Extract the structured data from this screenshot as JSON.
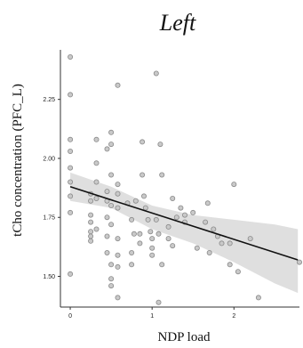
{
  "chart_data": {
    "type": "scatter",
    "title": "Left",
    "xlabel": "NDP load",
    "ylabel": "tCho concentration (PFC_L)",
    "xlim": [
      -0.12,
      2.8
    ],
    "ylim": [
      1.37,
      2.46
    ],
    "x_ticks": [
      0,
      1,
      2
    ],
    "y_ticks": [
      1.5,
      1.75,
      2.0,
      2.25
    ],
    "x_tick_labels": [
      "0",
      "1",
      "2"
    ],
    "y_tick_labels": [
      "1.50",
      "1.75",
      "2.00",
      "2.25"
    ],
    "grid": false,
    "fit_line": {
      "x": [
        0,
        2.78
      ],
      "y": [
        1.88,
        1.57
      ]
    },
    "confidence_band": {
      "x": [
        0,
        0.5,
        1.0,
        1.5,
        2.0,
        2.5,
        2.78
      ],
      "upper": [
        1.94,
        1.88,
        1.8,
        1.76,
        1.74,
        1.72,
        1.7
      ],
      "lower": [
        1.82,
        1.79,
        1.7,
        1.64,
        1.56,
        1.47,
        1.43
      ]
    },
    "points": [
      {
        "x": 0.0,
        "y": 2.43
      },
      {
        "x": 0.0,
        "y": 2.27
      },
      {
        "x": 0.0,
        "y": 2.08
      },
      {
        "x": 0.0,
        "y": 2.03
      },
      {
        "x": 0.0,
        "y": 1.96
      },
      {
        "x": 0.0,
        "y": 1.9
      },
      {
        "x": 0.0,
        "y": 1.84
      },
      {
        "x": 0.0,
        "y": 1.77
      },
      {
        "x": 0.0,
        "y": 1.51
      },
      {
        "x": 0.25,
        "y": 1.85
      },
      {
        "x": 0.25,
        "y": 1.82
      },
      {
        "x": 0.25,
        "y": 1.76
      },
      {
        "x": 0.25,
        "y": 1.73
      },
      {
        "x": 0.25,
        "y": 1.69
      },
      {
        "x": 0.25,
        "y": 1.67
      },
      {
        "x": 0.25,
        "y": 1.65
      },
      {
        "x": 0.32,
        "y": 2.08
      },
      {
        "x": 0.32,
        "y": 1.98
      },
      {
        "x": 0.32,
        "y": 1.9
      },
      {
        "x": 0.32,
        "y": 1.83
      },
      {
        "x": 0.32,
        "y": 1.7
      },
      {
        "x": 0.45,
        "y": 2.04
      },
      {
        "x": 0.45,
        "y": 1.86
      },
      {
        "x": 0.45,
        "y": 1.82
      },
      {
        "x": 0.45,
        "y": 1.75
      },
      {
        "x": 0.45,
        "y": 1.67
      },
      {
        "x": 0.45,
        "y": 1.6
      },
      {
        "x": 0.5,
        "y": 2.11
      },
      {
        "x": 0.5,
        "y": 2.06
      },
      {
        "x": 0.5,
        "y": 1.93
      },
      {
        "x": 0.5,
        "y": 1.8
      },
      {
        "x": 0.5,
        "y": 1.72
      },
      {
        "x": 0.5,
        "y": 1.55
      },
      {
        "x": 0.5,
        "y": 1.49
      },
      {
        "x": 0.5,
        "y": 1.46
      },
      {
        "x": 0.58,
        "y": 2.31
      },
      {
        "x": 0.58,
        "y": 1.89
      },
      {
        "x": 0.58,
        "y": 1.85
      },
      {
        "x": 0.58,
        "y": 1.79
      },
      {
        "x": 0.58,
        "y": 1.66
      },
      {
        "x": 0.58,
        "y": 1.59
      },
      {
        "x": 0.58,
        "y": 1.54
      },
      {
        "x": 0.58,
        "y": 1.41
      },
      {
        "x": 0.7,
        "y": 1.81
      },
      {
        "x": 0.75,
        "y": 1.74
      },
      {
        "x": 0.75,
        "y": 1.6
      },
      {
        "x": 0.75,
        "y": 1.55
      },
      {
        "x": 0.78,
        "y": 1.68
      },
      {
        "x": 0.8,
        "y": 1.82
      },
      {
        "x": 0.85,
        "y": 1.68
      },
      {
        "x": 0.85,
        "y": 1.64
      },
      {
        "x": 0.88,
        "y": 2.07
      },
      {
        "x": 0.88,
        "y": 1.93
      },
      {
        "x": 0.9,
        "y": 1.84
      },
      {
        "x": 0.92,
        "y": 1.79
      },
      {
        "x": 0.95,
        "y": 1.74
      },
      {
        "x": 0.98,
        "y": 1.69
      },
      {
        "x": 1.0,
        "y": 1.66
      },
      {
        "x": 1.0,
        "y": 1.62
      },
      {
        "x": 1.0,
        "y": 1.59
      },
      {
        "x": 1.05,
        "y": 2.36
      },
      {
        "x": 1.05,
        "y": 1.74
      },
      {
        "x": 1.08,
        "y": 1.68
      },
      {
        "x": 1.08,
        "y": 1.39
      },
      {
        "x": 1.1,
        "y": 2.06
      },
      {
        "x": 1.12,
        "y": 1.93
      },
      {
        "x": 1.12,
        "y": 1.55
      },
      {
        "x": 1.2,
        "y": 1.71
      },
      {
        "x": 1.2,
        "y": 1.66
      },
      {
        "x": 1.25,
        "y": 1.83
      },
      {
        "x": 1.25,
        "y": 1.63
      },
      {
        "x": 1.3,
        "y": 1.75
      },
      {
        "x": 1.35,
        "y": 1.79
      },
      {
        "x": 1.4,
        "y": 1.76
      },
      {
        "x": 1.4,
        "y": 1.73
      },
      {
        "x": 1.5,
        "y": 1.77
      },
      {
        "x": 1.55,
        "y": 1.62
      },
      {
        "x": 1.65,
        "y": 1.73
      },
      {
        "x": 1.68,
        "y": 1.81
      },
      {
        "x": 1.7,
        "y": 1.6
      },
      {
        "x": 1.75,
        "y": 1.7
      },
      {
        "x": 1.8,
        "y": 1.67
      },
      {
        "x": 1.85,
        "y": 1.64
      },
      {
        "x": 1.95,
        "y": 1.64
      },
      {
        "x": 1.95,
        "y": 1.55
      },
      {
        "x": 2.0,
        "y": 1.89
      },
      {
        "x": 2.05,
        "y": 1.52
      },
      {
        "x": 2.2,
        "y": 1.66
      },
      {
        "x": 2.3,
        "y": 1.41
      },
      {
        "x": 2.8,
        "y": 1.56
      }
    ]
  }
}
